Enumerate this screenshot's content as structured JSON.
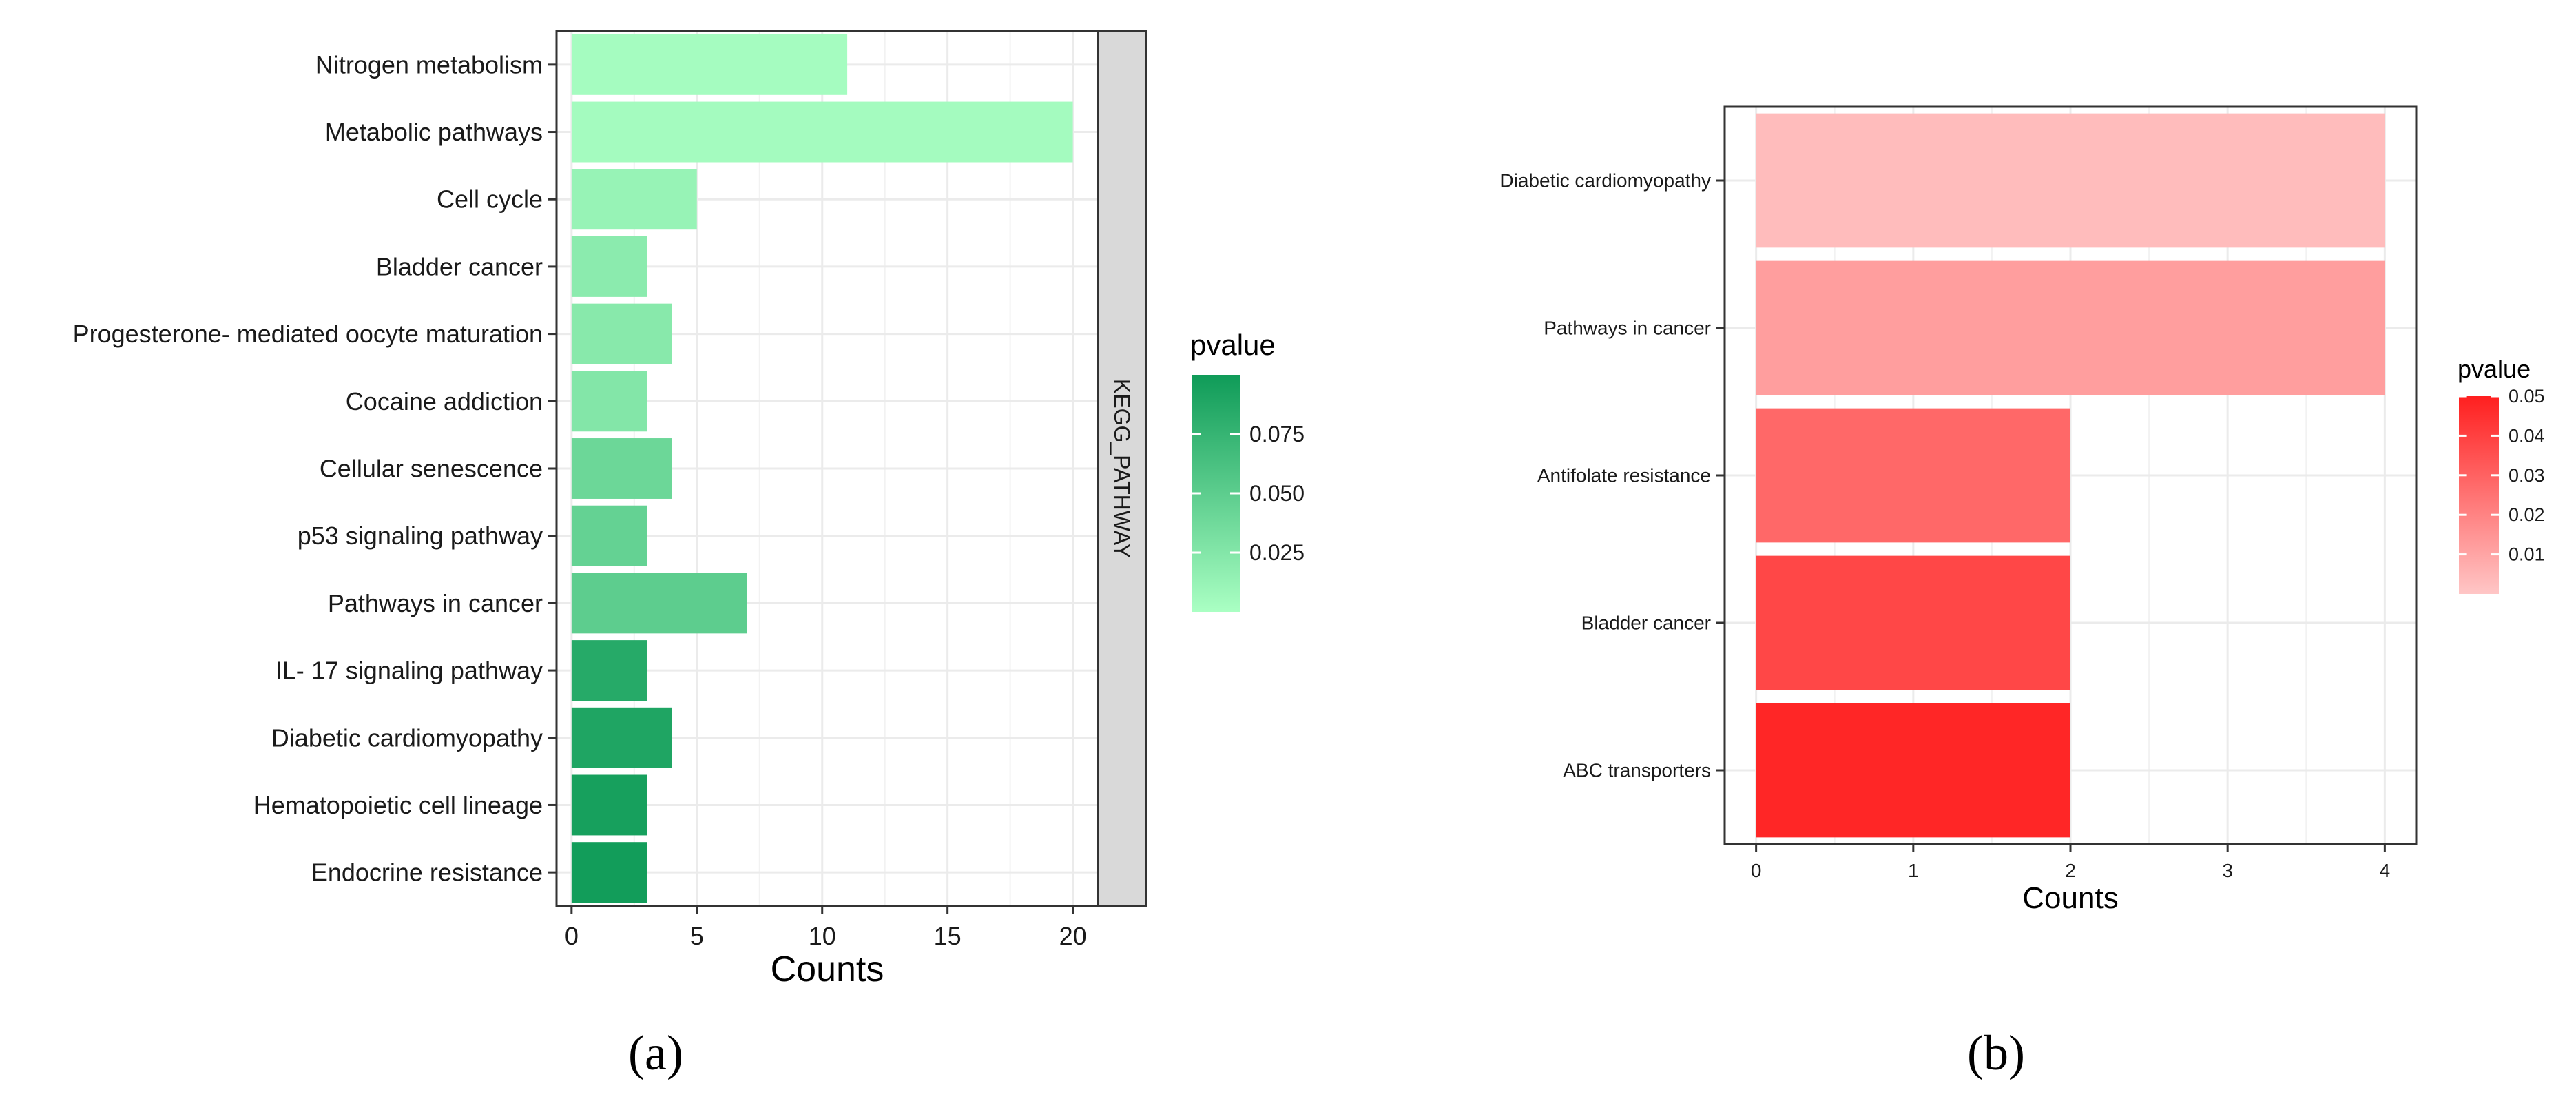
{
  "chart_data": [
    {
      "type": "bar",
      "orientation": "horizontal",
      "panel_label": "(a)",
      "categories": [
        "Nitrogen metabolism",
        "Metabolic pathways",
        "Cell cycle",
        "Bladder cancer",
        "Progesterone- mediated oocyte maturation",
        "Cocaine addiction",
        "Cellular senescence",
        "p53 signaling pathway",
        "Pathways in cancer",
        "IL- 17 signaling pathway",
        "Diabetic cardiomyopathy",
        "Hematopoietic cell lineage",
        "Endocrine resistance"
      ],
      "values": [
        11,
        20,
        5,
        3,
        4,
        3,
        4,
        3,
        7,
        3,
        4,
        3,
        3
      ],
      "pvalues": [
        0.003,
        0.004,
        0.012,
        0.02,
        0.022,
        0.025,
        0.04,
        0.045,
        0.05,
        0.085,
        0.09,
        0.095,
        0.098
      ],
      "xlabel": "Counts",
      "xlim": [
        -0.6,
        21
      ],
      "xticks": [
        0,
        5,
        10,
        15,
        20
      ],
      "facet_label": "KEGG_PATHWAY",
      "legend": {
        "title": "pvalue",
        "range": [
          0.0,
          0.1
        ],
        "ticks": [
          0.025,
          0.05,
          0.075
        ],
        "tick_labels": [
          "0.025",
          "0.050",
          "0.075"
        ],
        "low_color": "#aaffc3",
        "high_color": "#0f9b58",
        "placement": "right"
      }
    },
    {
      "type": "bar",
      "orientation": "horizontal",
      "panel_label": "(b)",
      "categories": [
        "Diabetic cardiomyopathy",
        "Pathways in cancer",
        "Antifolate resistance",
        "Bladder cancer",
        "ABC transporters"
      ],
      "values": [
        4,
        4,
        2,
        2,
        2
      ],
      "pvalues": [
        0.003,
        0.012,
        0.028,
        0.038,
        0.048
      ],
      "xlabel": "Counts",
      "xlim": [
        -0.2,
        4.2
      ],
      "xticks": [
        0,
        1,
        2,
        3,
        4
      ],
      "legend": {
        "title": "pvalue",
        "range": [
          0.0,
          0.05
        ],
        "ticks": [
          0.01,
          0.02,
          0.03,
          0.04,
          0.05
        ],
        "tick_labels": [
          "0.01",
          "0.02",
          "0.03",
          "0.04",
          "0.05"
        ],
        "low_color": "#ffc6c6",
        "high_color": "#ff1f1f",
        "placement": "right"
      }
    }
  ]
}
